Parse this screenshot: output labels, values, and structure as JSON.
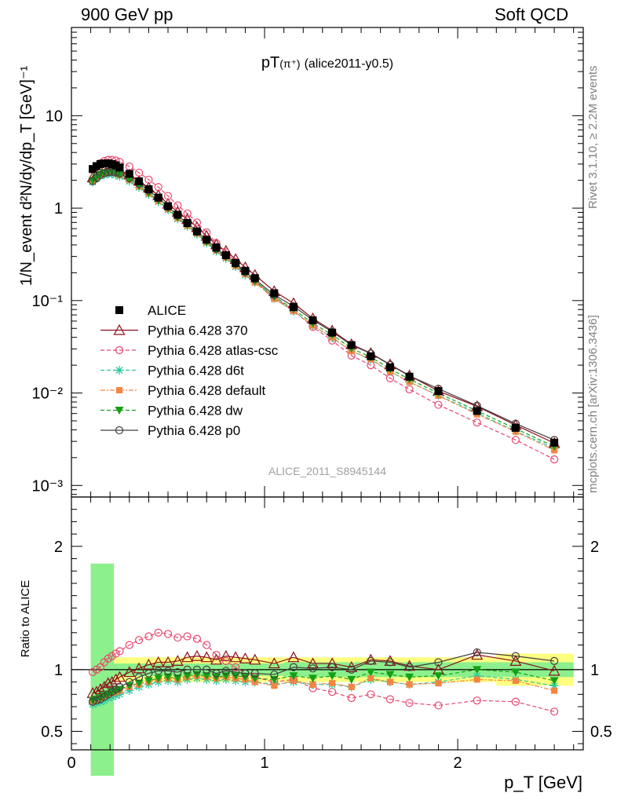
{
  "header": {
    "left": "900 GeV pp",
    "right": "Soft QCD",
    "side_top": "Rivet 3.1.10, ≥ 2.2M events",
    "side_bottom": "mcplots.cern.ch [arXiv:1306.3436]"
  },
  "chart_data": {
    "type": "line",
    "title_main": "pT",
    "title_particle": "(π⁺)",
    "title_tag": "(alice2011-y0.5)",
    "watermark": "ALICE_2011_S8945144",
    "xlabel": "p_T [GeV]",
    "xlim": [
      0,
      2.65
    ],
    "x_ticks": [
      0,
      1,
      2
    ],
    "upper": {
      "ylabel": "1/N_event d²N/dy/dp_T [GeV]⁻¹",
      "yscale": "log",
      "ylim": [
        0.00075,
        90
      ],
      "y_ticks": [
        "10⁻³",
        "10⁻²",
        "10⁻¹",
        "1",
        "10"
      ]
    },
    "lower": {
      "ylabel": "Ratio to ALICE",
      "ylim": [
        0.35,
        2.4
      ],
      "y_ticks": [
        "0.5",
        "1",
        "2"
      ],
      "band_inner": [
        [
          0.1,
          0.22,
          0.86
        ],
        [
          0.22,
          1.1,
          0.05
        ],
        [
          1.1,
          2.6,
          0.06
        ]
      ],
      "band_outer": [
        [
          0.1,
          0.12,
          0.45
        ],
        [
          0.12,
          0.22,
          0.18
        ],
        [
          0.22,
          1.1,
          0.1
        ],
        [
          1.1,
          2.2,
          0.1
        ],
        [
          2.2,
          2.6,
          0.13
        ]
      ]
    },
    "legend_position": "left, middle of upper panel",
    "x": [
      0.11,
      0.13,
      0.15,
      0.17,
      0.19,
      0.21,
      0.23,
      0.25,
      0.3,
      0.35,
      0.4,
      0.45,
      0.5,
      0.55,
      0.6,
      0.65,
      0.7,
      0.75,
      0.8,
      0.85,
      0.9,
      0.95,
      1.05,
      1.15,
      1.25,
      1.35,
      1.45,
      1.55,
      1.65,
      1.75,
      1.9,
      2.1,
      2.3,
      2.5
    ],
    "reference": {
      "name": "ALICE",
      "values": [
        2.65,
        2.85,
        3.0,
        3.05,
        3.05,
        3.0,
        2.9,
        2.75,
        2.35,
        1.95,
        1.6,
        1.3,
        1.05,
        0.85,
        0.69,
        0.56,
        0.455,
        0.375,
        0.31,
        0.255,
        0.21,
        0.175,
        0.12,
        0.085,
        0.061,
        0.045,
        0.033,
        0.025,
        0.019,
        0.015,
        0.0105,
        0.0064,
        0.0042,
        0.0029
      ]
    },
    "series": [
      {
        "name": "Pythia 6.428 370",
        "color": "#8b0f1a",
        "marker": "triangle-open",
        "dash": "",
        "ratio": [
          0.81,
          0.82,
          0.84,
          0.86,
          0.89,
          0.9,
          0.92,
          0.94,
          0.98,
          1.01,
          1.04,
          1.06,
          1.06,
          1.07,
          1.1,
          1.11,
          1.1,
          1.08,
          1.11,
          1.1,
          1.09,
          1.08,
          1.05,
          1.1,
          1.05,
          1.05,
          1.02,
          1.08,
          1.07,
          1.03,
          1.0,
          1.12,
          1.07,
          0.99
        ]
      },
      {
        "name": "Pythia 6.428 atlas-csc",
        "color": "#e8466e",
        "marker": "circle-open",
        "dash": "5,3",
        "ratio": [
          0.98,
          1.0,
          1.02,
          1.06,
          1.09,
          1.11,
          1.13,
          1.15,
          1.2,
          1.24,
          1.27,
          1.3,
          1.29,
          1.26,
          1.27,
          1.25,
          1.2,
          1.12,
          1.07,
          1.02,
          0.97,
          0.94,
          0.9,
          0.92,
          0.85,
          0.82,
          0.77,
          0.8,
          0.76,
          0.73,
          0.71,
          0.75,
          0.74,
          0.66
        ]
      },
      {
        "name": "Pythia 6.428 d6t",
        "color": "#28c8a0",
        "marker": "star",
        "dash": "5,3",
        "ratio": [
          0.72,
          0.73,
          0.74,
          0.75,
          0.77,
          0.78,
          0.79,
          0.8,
          0.83,
          0.86,
          0.88,
          0.9,
          0.91,
          0.9,
          0.92,
          0.93,
          0.92,
          0.91,
          0.92,
          0.91,
          0.9,
          0.9,
          0.88,
          0.9,
          0.88,
          0.88,
          0.86,
          0.92,
          0.9,
          0.88,
          0.9,
          0.95,
          0.92,
          0.87
        ]
      },
      {
        "name": "Pythia 6.428 default",
        "color": "#f58442",
        "marker": "square",
        "dash": "6,2,2,2",
        "ratio": [
          0.74,
          0.75,
          0.77,
          0.78,
          0.8,
          0.81,
          0.82,
          0.83,
          0.86,
          0.88,
          0.9,
          0.92,
          0.93,
          0.92,
          0.94,
          0.95,
          0.94,
          0.93,
          0.94,
          0.93,
          0.92,
          0.9,
          0.87,
          0.91,
          0.88,
          0.89,
          0.86,
          0.93,
          0.9,
          0.88,
          0.89,
          0.92,
          0.91,
          0.83
        ]
      },
      {
        "name": "Pythia 6.428 dw",
        "color": "#14a014",
        "marker": "triangle-down",
        "dash": "5,3",
        "ratio": [
          0.75,
          0.76,
          0.77,
          0.79,
          0.8,
          0.82,
          0.83,
          0.84,
          0.87,
          0.89,
          0.91,
          0.93,
          0.94,
          0.93,
          0.95,
          0.96,
          0.95,
          0.94,
          0.95,
          0.95,
          0.94,
          0.93,
          0.92,
          0.95,
          0.93,
          0.95,
          0.92,
          0.98,
          0.96,
          0.94,
          0.95,
          1.0,
          0.98,
          0.91
        ]
      },
      {
        "name": "Pythia 6.428 p0",
        "color": "#404040",
        "marker": "circle-open",
        "dash": "",
        "ratio": [
          0.74,
          0.75,
          0.76,
          0.78,
          0.8,
          0.82,
          0.84,
          0.86,
          0.9,
          0.94,
          0.97,
          0.99,
          0.99,
          0.98,
          1.0,
          1.0,
          1.0,
          0.97,
          0.99,
          0.98,
          0.97,
          0.97,
          0.96,
          1.02,
          1.01,
          1.02,
          1.0,
          1.07,
          1.06,
          1.02,
          1.06,
          1.14,
          1.11,
          1.07
        ]
      }
    ]
  }
}
